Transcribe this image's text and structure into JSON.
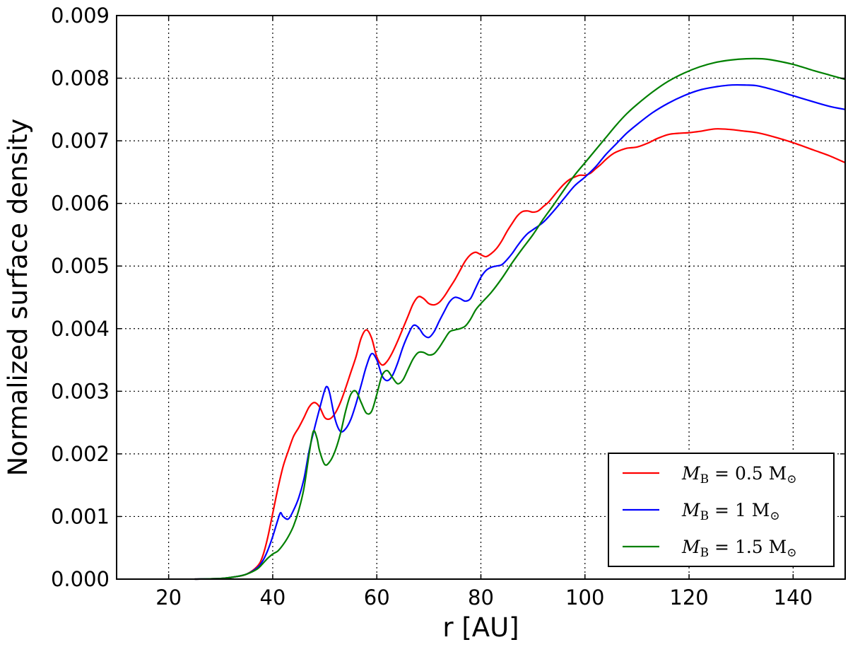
{
  "chart_data": {
    "type": "line",
    "title": "",
    "xlabel": "r [AU]",
    "ylabel": "Normalized surface density",
    "xlim": [
      10,
      150
    ],
    "ylim": [
      0,
      0.009
    ],
    "xticks": [
      20,
      40,
      60,
      80,
      100,
      120,
      140
    ],
    "yticks": [
      0.0,
      0.001,
      0.002,
      0.003,
      0.004,
      0.005,
      0.006,
      0.007,
      0.008,
      0.009
    ],
    "xtick_labels": [
      "20",
      "40",
      "60",
      "80",
      "100",
      "120",
      "140"
    ],
    "ytick_labels": [
      "0.000",
      "0.001",
      "0.002",
      "0.003",
      "0.004",
      "0.005",
      "0.006",
      "0.007",
      "0.008",
      "0.009"
    ],
    "grid": true,
    "legend_position": "lower-right",
    "series": [
      {
        "name": "M_B = 0.5 M_sun",
        "legend_label": {
          "main": "M",
          "sub": "B",
          "rest": " = 0.5 M",
          "sun": "⊙"
        },
        "color": "#ff0000",
        "x": [
          25,
          30,
          33,
          35,
          37,
          38,
          39,
          40,
          41,
          42,
          43,
          44,
          45,
          46,
          47,
          48,
          49,
          50,
          51,
          52,
          53,
          54,
          55,
          56,
          57,
          58,
          59,
          60,
          61,
          62,
          63,
          64,
          65,
          66,
          67,
          68,
          69,
          70,
          71,
          72,
          73,
          74,
          75,
          76,
          77,
          78,
          79,
          80,
          81,
          82,
          83,
          84,
          85,
          86,
          87,
          88,
          89,
          90,
          91,
          92,
          93,
          94,
          95,
          96,
          97,
          98,
          99,
          100,
          101,
          102,
          103,
          104,
          105,
          106,
          108,
          110,
          112,
          114,
          116,
          118,
          120,
          122,
          125,
          128,
          130,
          133,
          136,
          140,
          144,
          147,
          150
        ],
        "y": [
          0.0,
          1e-05,
          4e-05,
          8e-05,
          0.0002,
          0.00035,
          0.00065,
          0.00105,
          0.00145,
          0.0018,
          0.00205,
          0.00228,
          0.00242,
          0.00258,
          0.00275,
          0.00282,
          0.00275,
          0.00258,
          0.00256,
          0.00265,
          0.00282,
          0.00305,
          0.0033,
          0.00355,
          0.00385,
          0.00398,
          0.00385,
          0.00355,
          0.00342,
          0.00348,
          0.00362,
          0.0038,
          0.004,
          0.0042,
          0.0044,
          0.00451,
          0.00448,
          0.0044,
          0.00438,
          0.00442,
          0.00452,
          0.00465,
          0.00478,
          0.00493,
          0.00508,
          0.00518,
          0.00522,
          0.00518,
          0.00515,
          0.0052,
          0.00528,
          0.0054,
          0.00555,
          0.00568,
          0.0058,
          0.00587,
          0.00588,
          0.00586,
          0.00588,
          0.00595,
          0.00602,
          0.00612,
          0.00622,
          0.00631,
          0.00638,
          0.00642,
          0.00645,
          0.00645,
          0.00648,
          0.00655,
          0.00662,
          0.0067,
          0.00677,
          0.00682,
          0.00688,
          0.0069,
          0.00696,
          0.00704,
          0.0071,
          0.00712,
          0.00713,
          0.00715,
          0.00719,
          0.00718,
          0.00716,
          0.00713,
          0.00707,
          0.00697,
          0.00685,
          0.00676,
          0.00665
        ]
      },
      {
        "name": "M_B = 1 M_sun",
        "legend_label": {
          "main": "M",
          "sub": "B",
          "rest": " = 1 M",
          "sun": "⊙"
        },
        "color": "#0000ff",
        "x": [
          25,
          30,
          33,
          35,
          37,
          38,
          39,
          40,
          41,
          41.5,
          42,
          43,
          44,
          45,
          46,
          47,
          48,
          49,
          50,
          50.5,
          51,
          52,
          53,
          54,
          55,
          56,
          57,
          58,
          59,
          60,
          61,
          62,
          63,
          64,
          65,
          66,
          67,
          68,
          69,
          70,
          71,
          72,
          73,
          74,
          75,
          76,
          77,
          78,
          79,
          80,
          81,
          82,
          83,
          84,
          85,
          86,
          87,
          88,
          89,
          90,
          92,
          94,
          96,
          98,
          100,
          102,
          104,
          106,
          108,
          110,
          113,
          116,
          119,
          122,
          125,
          128,
          131,
          133,
          136,
          140,
          144,
          147,
          150
        ],
        "y": [
          0.0,
          1e-05,
          4e-05,
          8e-05,
          0.00018,
          0.00028,
          0.00045,
          0.00068,
          0.00095,
          0.00106,
          0.001,
          0.00096,
          0.0011,
          0.0013,
          0.0016,
          0.00205,
          0.0024,
          0.00272,
          0.00302,
          0.00307,
          0.00295,
          0.00255,
          0.00236,
          0.0024,
          0.00255,
          0.0028,
          0.0031,
          0.0034,
          0.0036,
          0.0035,
          0.00325,
          0.00317,
          0.00325,
          0.00345,
          0.0037,
          0.0039,
          0.00405,
          0.00402,
          0.0039,
          0.00386,
          0.00395,
          0.00412,
          0.00428,
          0.00443,
          0.0045,
          0.00448,
          0.00444,
          0.00448,
          0.00465,
          0.00482,
          0.00493,
          0.00498,
          0.005,
          0.00502,
          0.0051,
          0.0052,
          0.00532,
          0.00543,
          0.00552,
          0.00558,
          0.0057,
          0.00588,
          0.00608,
          0.00628,
          0.00642,
          0.00658,
          0.00678,
          0.00695,
          0.00712,
          0.00726,
          0.00745,
          0.0076,
          0.00772,
          0.00781,
          0.00786,
          0.00789,
          0.00789,
          0.00788,
          0.00782,
          0.00772,
          0.00762,
          0.00755,
          0.0075
        ]
      },
      {
        "name": "M_B = 1.5 M_sun",
        "legend_label": {
          "main": "M",
          "sub": "B",
          "rest": " = 1.5 M",
          "sun": "⊙"
        },
        "color": "#008000",
        "x": [
          25,
          30,
          33,
          35,
          37,
          38,
          39,
          40,
          41,
          42,
          43,
          44,
          45,
          46,
          47,
          47.8,
          48.5,
          49,
          50,
          51,
          52,
          53,
          54,
          55,
          56,
          57,
          58,
          59,
          60,
          61,
          62,
          63,
          64,
          65,
          66,
          67,
          68,
          69,
          70,
          71,
          72,
          73,
          74,
          75,
          76,
          77,
          78,
          79,
          80,
          82,
          84,
          86,
          88,
          90,
          92,
          94,
          96,
          98,
          100,
          102,
          104,
          106,
          108,
          110,
          113,
          116,
          119,
          122,
          125,
          128,
          131,
          134,
          136,
          140,
          144,
          147,
          150
        ],
        "y": [
          0.0,
          1e-05,
          4e-05,
          8e-05,
          0.00016,
          0.00024,
          0.00033,
          0.0004,
          0.00045,
          0.00055,
          0.00068,
          0.00085,
          0.0011,
          0.00145,
          0.002,
          0.00236,
          0.00225,
          0.00205,
          0.00183,
          0.00188,
          0.00205,
          0.00232,
          0.00268,
          0.00295,
          0.003,
          0.00282,
          0.00265,
          0.00268,
          0.00295,
          0.00325,
          0.00333,
          0.00322,
          0.00312,
          0.00318,
          0.00335,
          0.00352,
          0.00362,
          0.00362,
          0.00358,
          0.0036,
          0.0037,
          0.00383,
          0.00395,
          0.00398,
          0.004,
          0.00404,
          0.00415,
          0.0043,
          0.0044,
          0.00458,
          0.0048,
          0.00505,
          0.00528,
          0.0055,
          0.00575,
          0.00598,
          0.00622,
          0.00645,
          0.00665,
          0.00685,
          0.00705,
          0.00725,
          0.00743,
          0.00758,
          0.00778,
          0.00795,
          0.00808,
          0.00818,
          0.00825,
          0.00829,
          0.00831,
          0.00831,
          0.00829,
          0.00822,
          0.00812,
          0.00805,
          0.00798
        ]
      }
    ]
  }
}
